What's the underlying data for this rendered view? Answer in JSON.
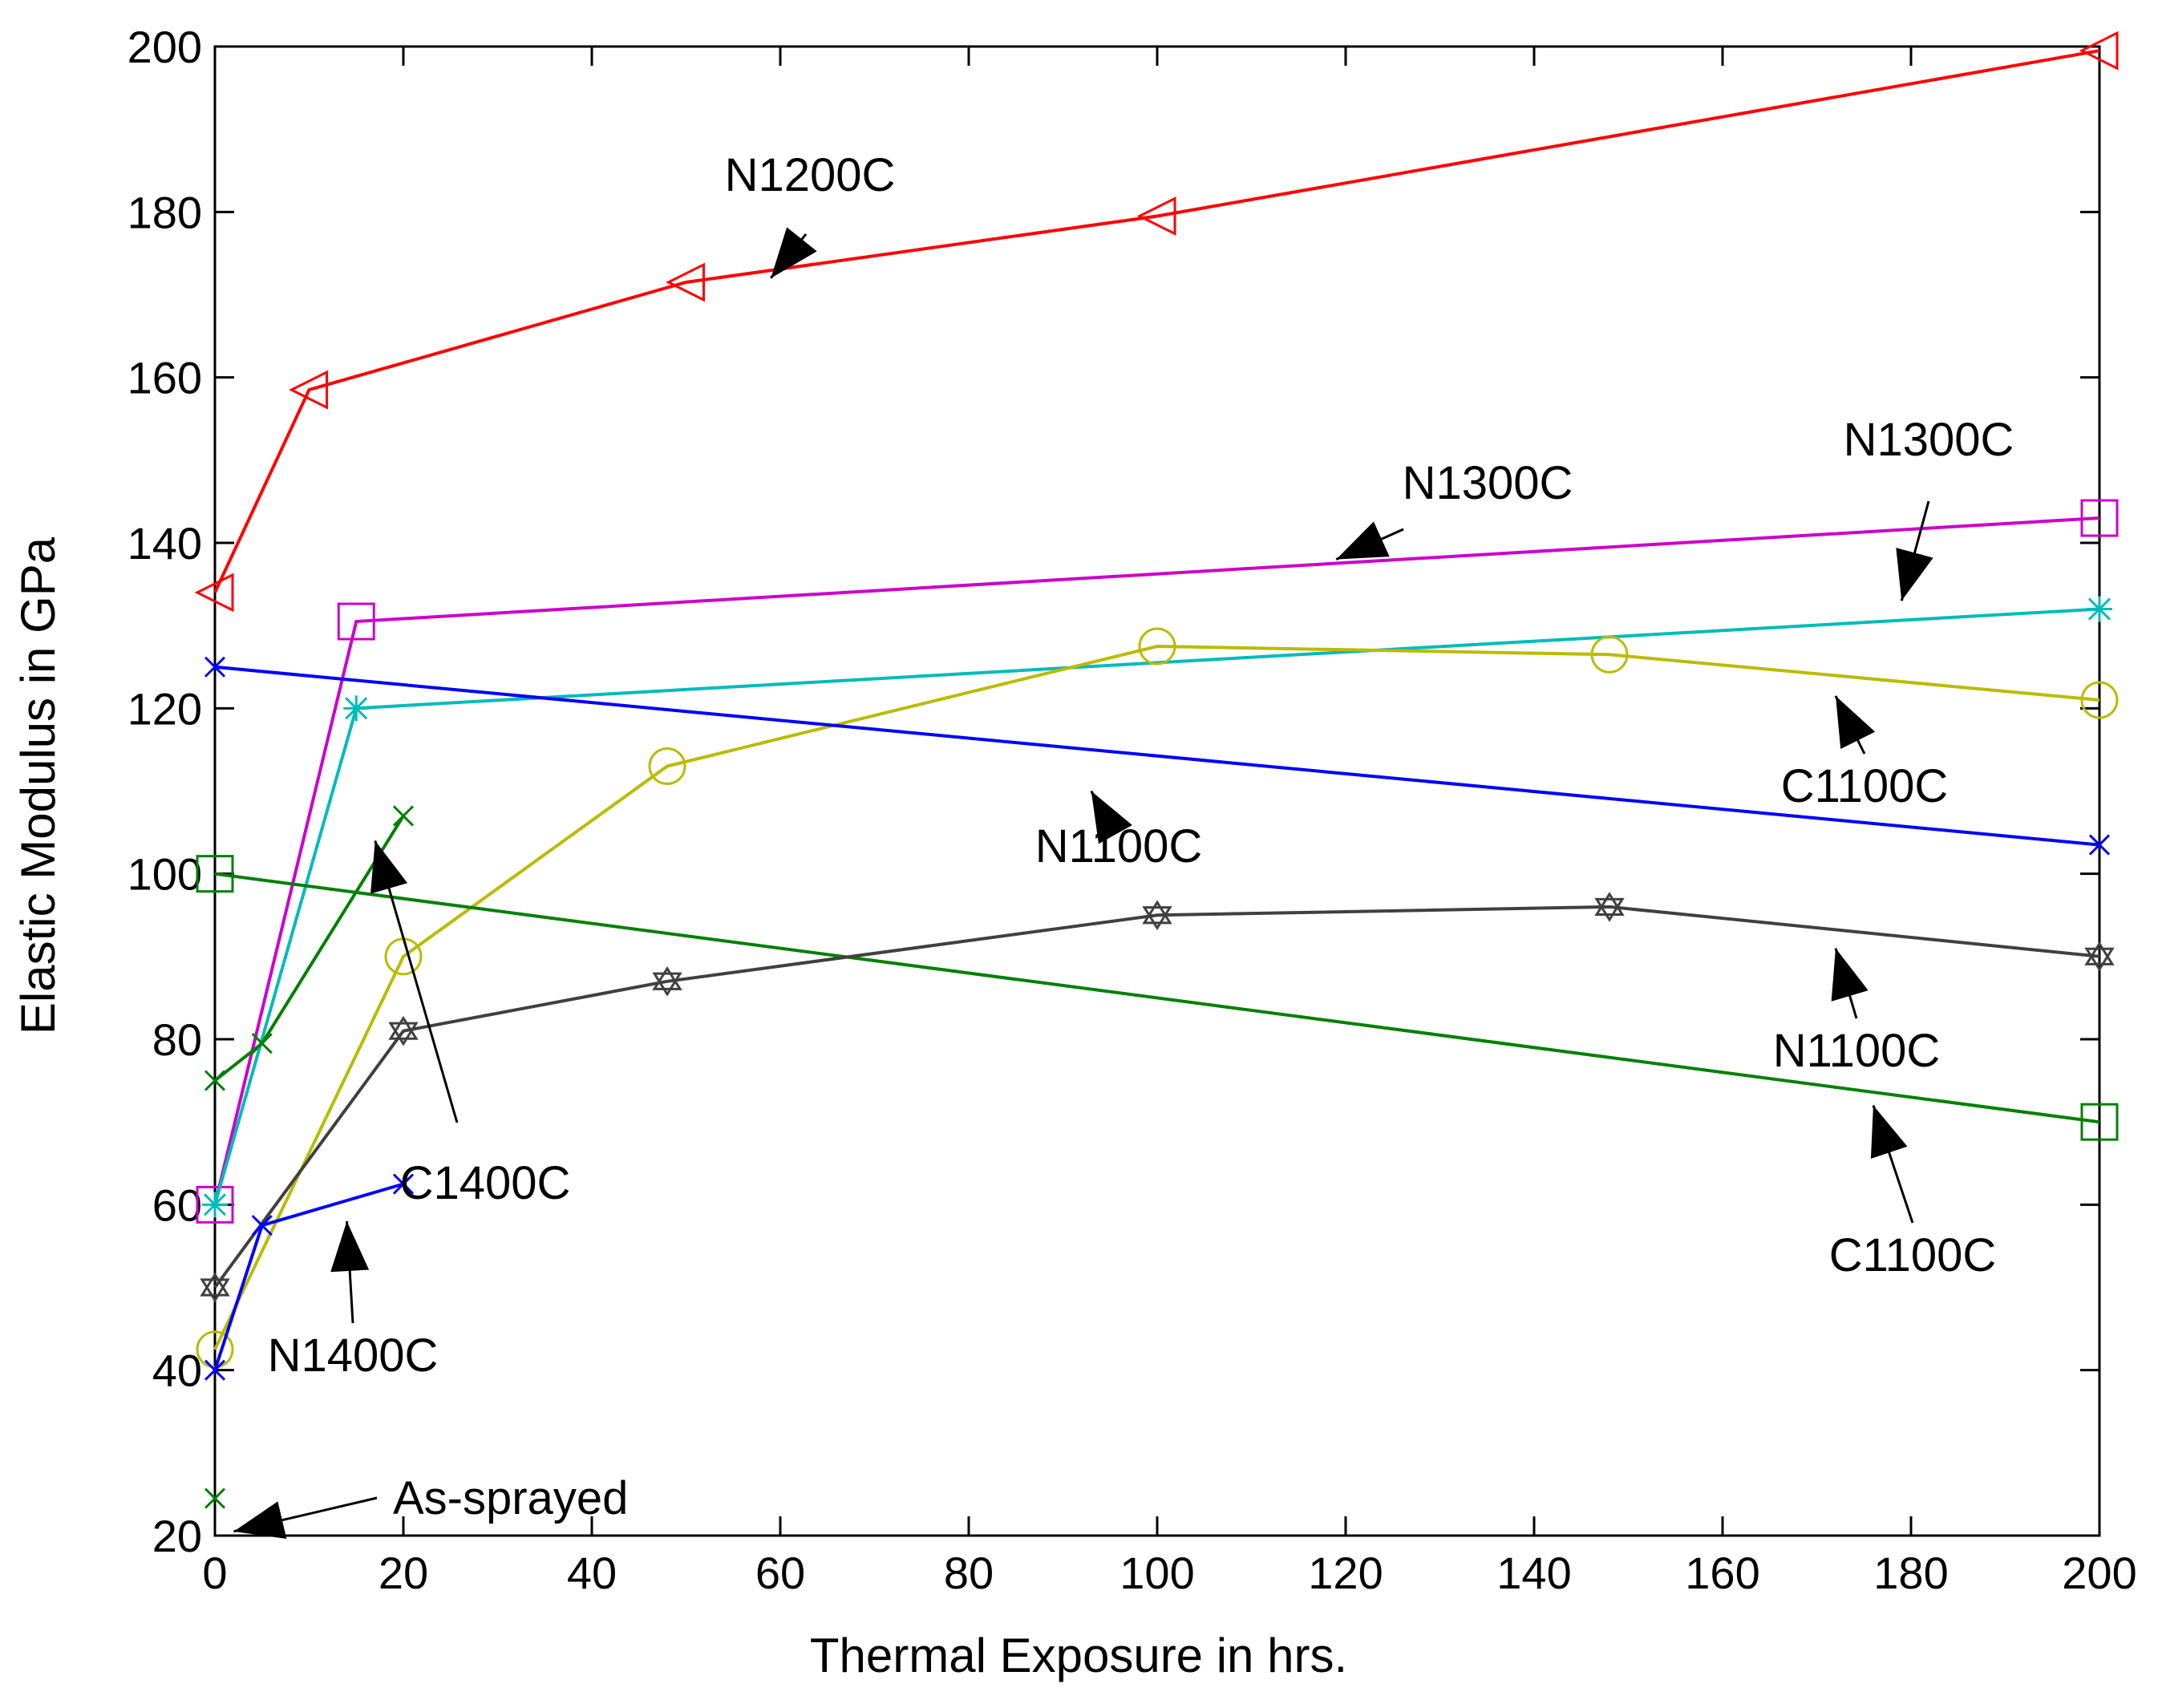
{
  "chart_data": {
    "type": "line",
    "title": "",
    "xlabel": "Thermal Exposure in hrs.",
    "ylabel": "Elastic Modulus in GPa",
    "xlim": [
      0,
      200
    ],
    "ylim": [
      20,
      200
    ],
    "xticks": [
      0,
      20,
      40,
      60,
      80,
      100,
      120,
      140,
      160,
      180,
      200
    ],
    "yticks": [
      20,
      40,
      60,
      80,
      100,
      120,
      140,
      160,
      180,
      200
    ],
    "grid": false,
    "legend": "none (curves labeled by annotations)",
    "series": [
      {
        "name": "N1200C",
        "color": "#ff0000",
        "marker": "triangle-left",
        "x": [
          0,
          10,
          50,
          100,
          200
        ],
        "y": [
          134,
          158.5,
          171.5,
          179.5,
          199.5
        ]
      },
      {
        "name": "N1300C (magenta)",
        "color": "#cc00cc",
        "marker": "square",
        "x": [
          0,
          15,
          200
        ],
        "y": [
          60,
          130.5,
          143
        ]
      },
      {
        "name": "N1300C (cyan)",
        "color": "#00bbbb",
        "marker": "star",
        "x": [
          0,
          15,
          200
        ],
        "y": [
          60,
          120,
          132
        ]
      },
      {
        "name": "C1100C (yellow)",
        "color": "#bbbb00",
        "marker": "circle",
        "x": [
          0,
          20,
          48,
          100,
          148,
          200
        ],
        "y": [
          42.5,
          90,
          113,
          127.5,
          126.5,
          121
        ]
      },
      {
        "name": "N1100C (blue)",
        "color": "#0000ff",
        "marker": "x",
        "x": [
          0,
          200
        ],
        "y": [
          125,
          103.5
        ]
      },
      {
        "name": "C1100C (green)",
        "color": "#008000",
        "marker": "square",
        "x": [
          0,
          200
        ],
        "y": [
          100,
          70
        ]
      },
      {
        "name": "N1100C (gray)",
        "color": "#404040",
        "marker": "hexagram",
        "x": [
          0,
          20,
          48,
          100,
          148,
          200
        ],
        "y": [
          50,
          81,
          87,
          95,
          96,
          90
        ]
      },
      {
        "name": "C1400C",
        "color": "#008000",
        "marker": "x",
        "x": [
          0,
          5,
          20
        ],
        "y": [
          75,
          79.5,
          107
        ]
      },
      {
        "name": "N1400C",
        "color": "#0000ff",
        "marker": "x",
        "x": [
          0,
          5,
          20
        ],
        "y": [
          40,
          57.5,
          62.5
        ]
      },
      {
        "name": "As-sprayed",
        "color": "#008000",
        "marker": "x",
        "x": [
          0
        ],
        "y": [
          24.5
        ]
      }
    ],
    "annotations": [
      {
        "text": "N1200C",
        "points_to": [
          59,
          172
        ]
      },
      {
        "text": "N1300C",
        "points_to": [
          119,
          138
        ]
      },
      {
        "text": "N1300C",
        "points_to": [
          179,
          133
        ]
      },
      {
        "text": "C1100C",
        "points_to": [
          172,
          121.5
        ]
      },
      {
        "text": "N1100C",
        "points_to": [
          93,
          110
        ]
      },
      {
        "text": "N1100C",
        "points_to": [
          172,
          91
        ]
      },
      {
        "text": "C1400C",
        "points_to": [
          17,
          104
        ]
      },
      {
        "text": "C1100C",
        "points_to": [
          176,
          72
        ]
      },
      {
        "text": "N1400C",
        "points_to": [
          14,
          58
        ]
      },
      {
        "text": "As-sprayed",
        "points_to": [
          2,
          20.5
        ]
      }
    ]
  }
}
